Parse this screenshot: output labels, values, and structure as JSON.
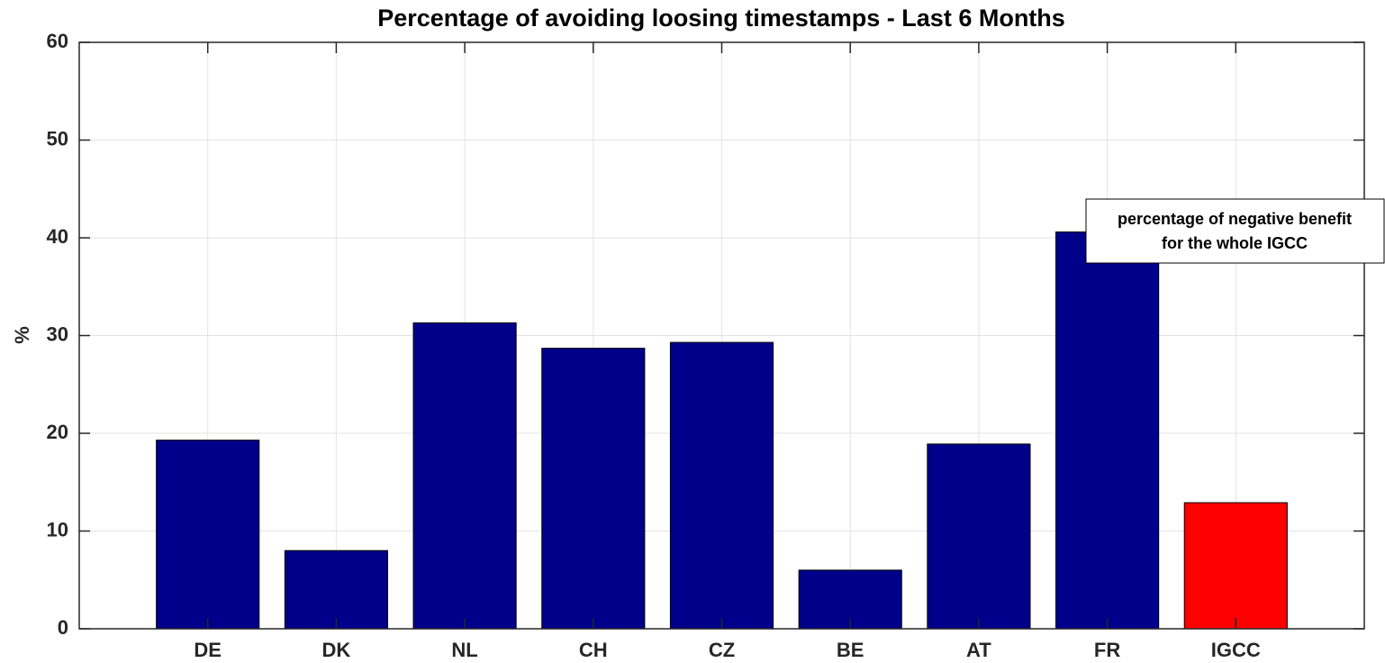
{
  "chart_data": {
    "type": "bar",
    "title": "Percentage of avoiding loosing timestamps - Last 6 Months",
    "ylabel": "%",
    "categories": [
      "DE",
      "DK",
      "NL",
      "CH",
      "CZ",
      "BE",
      "AT",
      "FR",
      "IGCC"
    ],
    "values": [
      19.3,
      8.0,
      31.3,
      28.7,
      29.3,
      6.0,
      18.9,
      40.6,
      12.9
    ],
    "colors": [
      "#00008b",
      "#00008b",
      "#00008b",
      "#00008b",
      "#00008b",
      "#00008b",
      "#00008b",
      "#00008b",
      "#ff0000"
    ],
    "ylim": [
      0,
      60
    ],
    "yticks": [
      0,
      10,
      20,
      30,
      40,
      50,
      60
    ],
    "grid": true,
    "annotation": [
      "percentage of negative benefit",
      "for the whole IGCC"
    ]
  }
}
